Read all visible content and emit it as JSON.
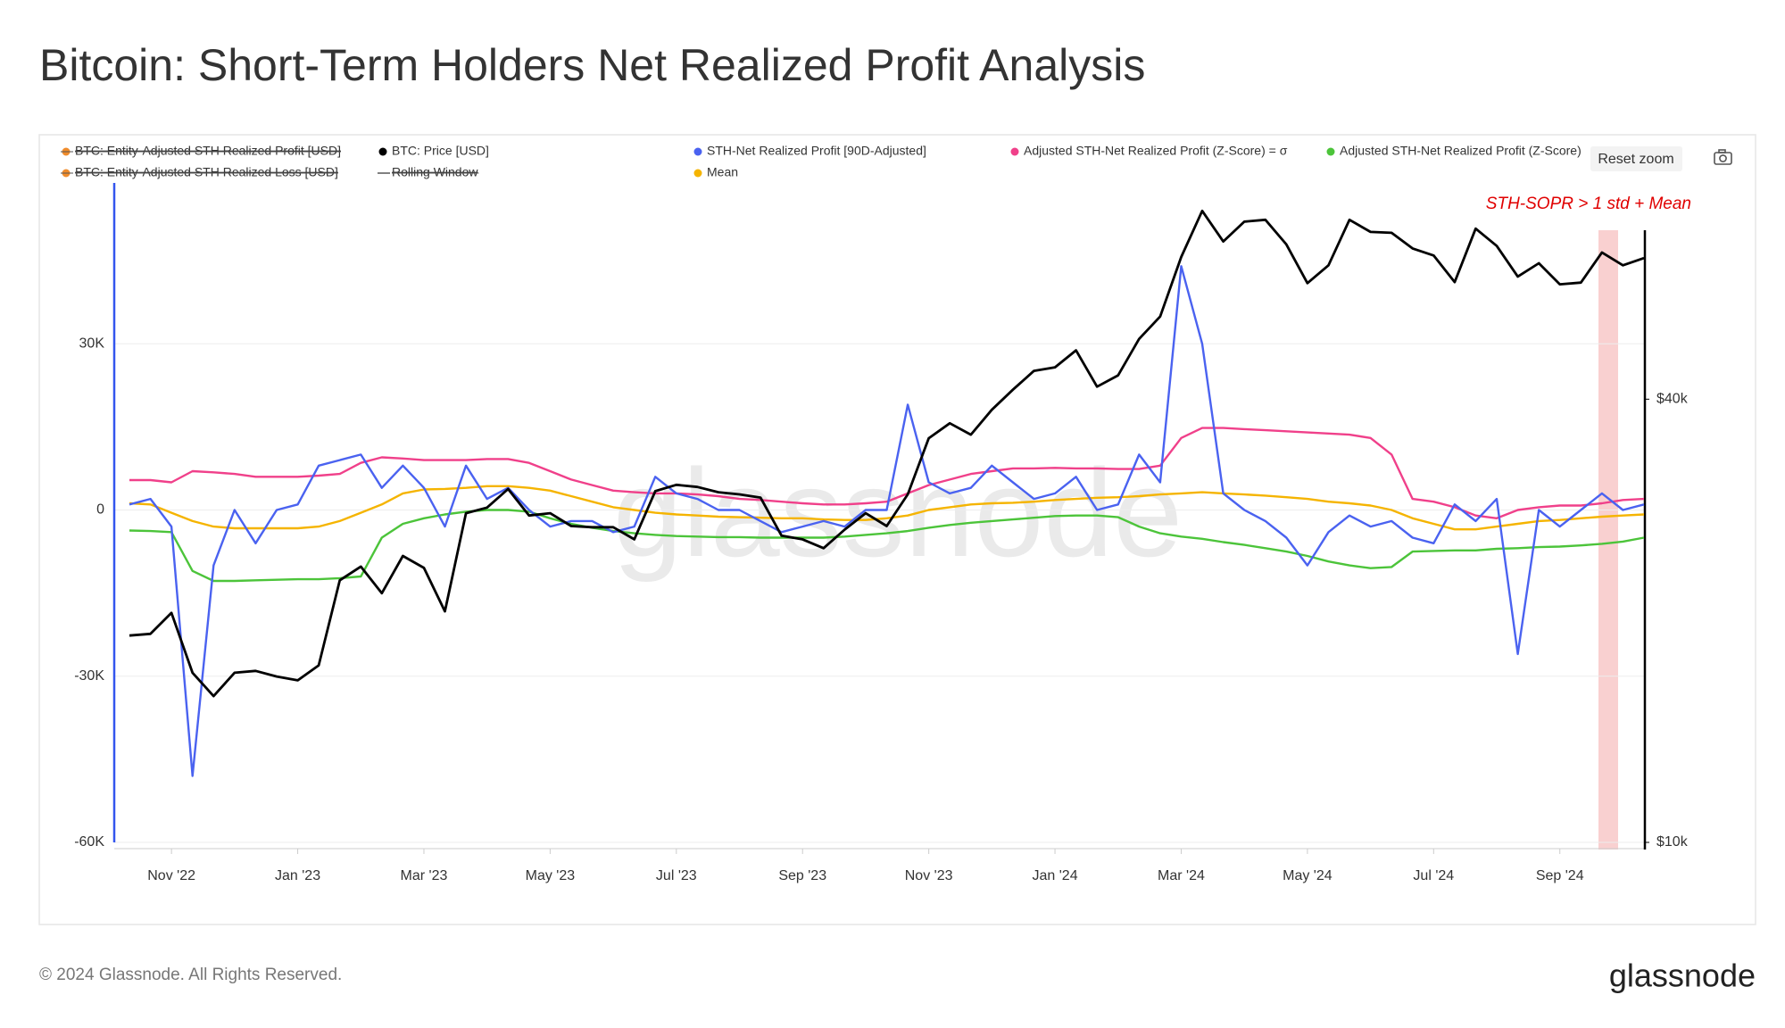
{
  "chart_data": {
    "type": "line",
    "title": "Bitcoin: Short-Term Holders Net Realized Profit Analysis",
    "annotation": "STH-SOPR > 1 std + Mean",
    "watermark": "glassnode",
    "reset_button": "Reset zoom",
    "footer": "© 2024 Glassnode. All Rights Reserved.",
    "logo": "glassnode",
    "categories": [
      null,
      null,
      "Nov '22",
      null,
      null,
      null,
      null,
      null,
      "Jan '23",
      null,
      null,
      null,
      null,
      null,
      "Mar '23",
      null,
      null,
      null,
      null,
      null,
      "May '23",
      null,
      null,
      null,
      null,
      null,
      "Jul '23",
      null,
      null,
      null,
      null,
      null,
      "Sep '23",
      null,
      null,
      null,
      null,
      null,
      "Nov '23",
      null,
      null,
      null,
      null,
      null,
      "Jan '24",
      null,
      null,
      null,
      null,
      null,
      "Mar '24",
      null,
      null,
      null,
      null,
      null,
      "May '24",
      null,
      null,
      null,
      null,
      null,
      "Jul '24",
      null,
      null,
      null,
      null,
      null,
      "Sep '24",
      null,
      null,
      null,
      null
    ],
    "ylim": [
      -60000,
      60000
    ],
    "yticks": [
      {
        "value": -60000,
        "label": "-60K"
      },
      {
        "value": -30000,
        "label": "-30K"
      },
      0,
      {
        "value": 30000,
        "label": "30K"
      }
    ],
    "y2lim": [
      10000,
      80000
    ],
    "y2log": true,
    "y2ticks": [
      {
        "value": 10000,
        "label": "$10k"
      },
      {
        "value": 40000,
        "label": "$40k"
      }
    ],
    "grid": true,
    "hidden_legend": [
      {
        "name": "BTC: Entity-Adjusted STH Realized Profit [USD]",
        "color": "#f08c2c"
      },
      {
        "name": "BTC: Entity-Adjusted STH Realized Loss [USD]",
        "color": "#f08c2c"
      },
      {
        "name": "Rolling Window",
        "color": "#555555"
      }
    ],
    "series": [
      {
        "name": "Adjusted STH-Net Realized Profit (Z-Score) = σ",
        "color": "#f0408a",
        "values": [
          5400,
          5400,
          5000,
          7000,
          6800,
          6500,
          6000,
          6000,
          6000,
          6200,
          6500,
          8500,
          9500,
          9300,
          9000,
          9000,
          9000,
          9200,
          9200,
          8500,
          7000,
          5500,
          4500,
          3500,
          3200,
          3000,
          3000,
          2800,
          2500,
          2000,
          1800,
          1500,
          1200,
          1000,
          1000,
          1200,
          1500,
          3000,
          4500,
          5500,
          6500,
          7000,
          7500,
          7500,
          7600,
          7500,
          7500,
          7400,
          7400,
          8000,
          13000,
          14800,
          14800,
          14600,
          14400,
          14200,
          14000,
          13800,
          13600,
          13000,
          10000,
          2000,
          1500,
          500,
          -1000,
          -1500,
          0,
          500,
          800,
          800,
          1200,
          1800,
          2000
        ]
      },
      {
        "name": "Mean",
        "color": "#f5b400",
        "values": [
          1200,
          1000,
          -500,
          -2000,
          -3000,
          -3300,
          -3300,
          -3300,
          -3300,
          -3000,
          -2000,
          -500,
          1000,
          3000,
          3700,
          3800,
          4000,
          4300,
          4300,
          4000,
          3500,
          2500,
          1500,
          500,
          0,
          -500,
          -800,
          -1000,
          -1200,
          -1300,
          -1400,
          -1500,
          -1500,
          -1700,
          -1800,
          -1800,
          -1500,
          -1000,
          0,
          500,
          1000,
          1200,
          1300,
          1500,
          1800,
          2000,
          2200,
          2300,
          2500,
          2800,
          3000,
          3200,
          3000,
          2800,
          2600,
          2300,
          2000,
          1500,
          1200,
          800,
          0,
          -1500,
          -2500,
          -3500,
          -3500,
          -3000,
          -2500,
          -2000,
          -1800,
          -1500,
          -1200,
          -1000,
          -800
        ]
      },
      {
        "name": "Adjusted STH-Net Realized Profit (Z-Score)",
        "color": "#4cc43a",
        "values": [
          -3700,
          -3800,
          -4000,
          -11000,
          -12800,
          -12800,
          -12700,
          -12600,
          -12500,
          -12500,
          -12300,
          -12000,
          -5000,
          -2500,
          -1500,
          -800,
          -300,
          0,
          0,
          -300,
          -1500,
          -2500,
          -3200,
          -3800,
          -4200,
          -4500,
          -4700,
          -4800,
          -4900,
          -4900,
          -5000,
          -5000,
          -5000,
          -5000,
          -4800,
          -4500,
          -4200,
          -3800,
          -3200,
          -2700,
          -2300,
          -2000,
          -1700,
          -1400,
          -1100,
          -1000,
          -1000,
          -1300,
          -3000,
          -4200,
          -4800,
          -5200,
          -5800,
          -6300,
          -6900,
          -7500,
          -8300,
          -9300,
          -10000,
          -10500,
          -10300,
          -7500,
          -7400,
          -7300,
          -7300,
          -7000,
          -6900,
          -6700,
          -6600,
          -6400,
          -6100,
          -5700,
          -5000
        ]
      },
      {
        "name": "STH-Net Realized Profit [90D-Adjusted]",
        "color": "#4a62f0",
        "values": [
          1000,
          2000,
          -3000,
          -48000,
          -10000,
          0,
          -6000,
          0,
          1000,
          8000,
          9000,
          10000,
          4000,
          8000,
          4000,
          -3000,
          8000,
          2000,
          4000,
          0,
          -3000,
          -2000,
          -2000,
          -4000,
          -3000,
          6000,
          3000,
          2000,
          0,
          0,
          -2000,
          -4000,
          -3000,
          -2000,
          -3000,
          0,
          0,
          19000,
          5000,
          3000,
          4000,
          8000,
          5000,
          2000,
          3000,
          6000,
          0,
          1000,
          10000,
          5000,
          44000,
          30000,
          3000,
          0,
          -2000,
          -5000,
          -10000,
          -4000,
          -1000,
          -3000,
          -2000,
          -5000,
          -6000,
          1000,
          -2000,
          2000,
          -26000,
          0,
          -3000,
          0,
          3000,
          0,
          1000
        ]
      },
      {
        "name": "BTC: Price [USD]",
        "color": "#000000",
        "axis": "y2",
        "values": [
          19100,
          19200,
          20500,
          17000,
          15800,
          17000,
          17100,
          16800,
          16600,
          17400,
          22700,
          23700,
          21800,
          24500,
          23600,
          20600,
          28000,
          28500,
          30200,
          27800,
          28000,
          26900,
          26800,
          26800,
          25800,
          30000,
          30600,
          30400,
          29900,
          29700,
          29400,
          26100,
          25800,
          25100,
          26600,
          28000,
          26900,
          29700,
          35400,
          37100,
          35800,
          38700,
          41200,
          43700,
          44200,
          46600,
          41600,
          43100,
          48300,
          51800,
          62400,
          72100,
          65500,
          69700,
          70100,
          64900,
          57500,
          60800,
          70100,
          67500,
          67300,
          64100,
          62700,
          57700,
          68200,
          64600,
          58700,
          61200,
          57300,
          57600,
          63300,
          60800,
          62200
        ]
      }
    ]
  }
}
